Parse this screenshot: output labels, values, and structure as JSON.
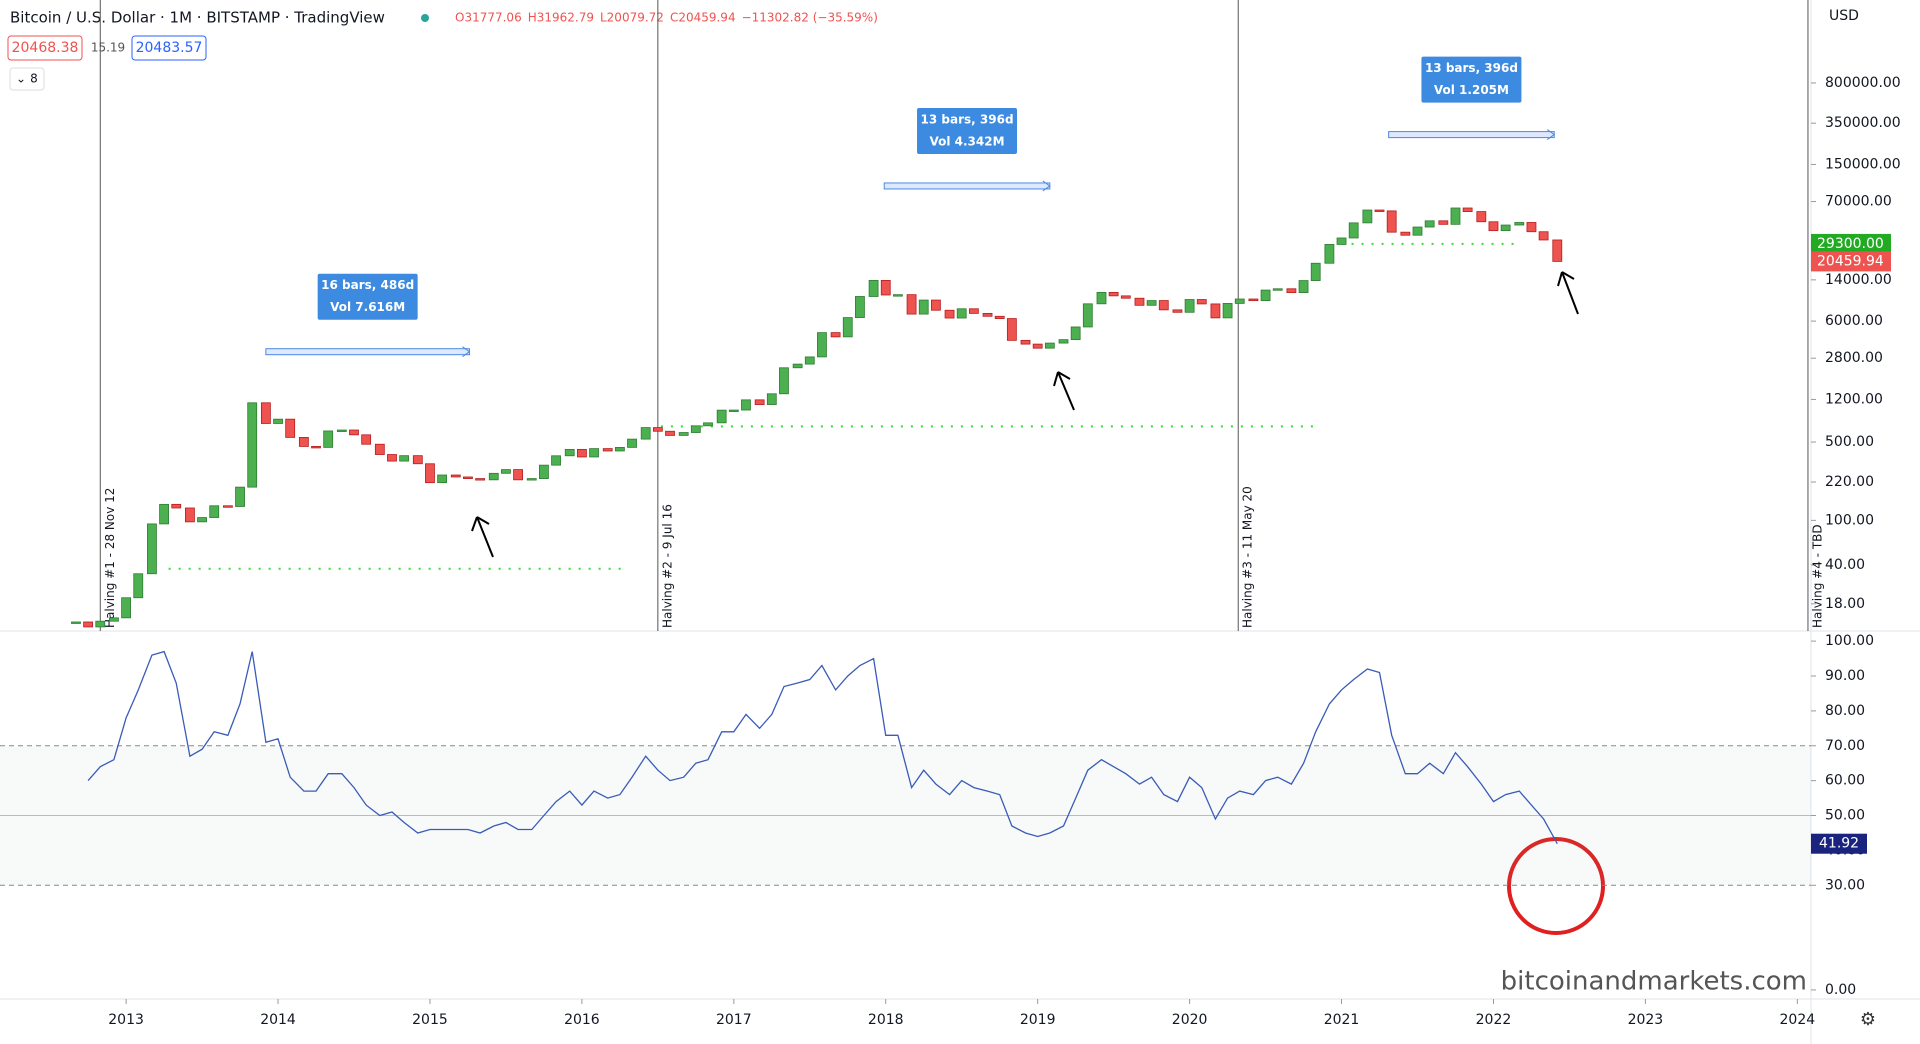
{
  "header": {
    "symbol": "Bitcoin / U.S. Dollar · 1M · BITSTAMP · TradingView",
    "ohlc": [
      "O31777.06",
      "H31962.79",
      "L20079.72",
      "C20459.94",
      "−11302.82 (−35.59%)"
    ],
    "bid": "20468.38",
    "spread": "15.19",
    "ask": "20483.57",
    "indicator_count": "8",
    "currency": "USD"
  },
  "watermark": "bitcoinandmarkets.com",
  "chart_data": [
    {
      "type": "candlestick",
      "log_scale": true,
      "up_color": "#4caf50",
      "down_color": "#ef5350",
      "ylim": [
        10.3,
        4400000
      ],
      "yticks": [
        {
          "value": 18,
          "label": "18.00"
        },
        {
          "value": 40,
          "label": "40.00"
        },
        {
          "value": 100,
          "label": "100.00"
        },
        {
          "value": 220,
          "label": "220.00"
        },
        {
          "value": 500,
          "label": "500.00"
        },
        {
          "value": 1200,
          "label": "1200.00"
        },
        {
          "value": 2800,
          "label": "2800.00"
        },
        {
          "value": 6000,
          "label": "6000.00"
        },
        {
          "value": 14000,
          "label": "14000.00"
        },
        {
          "value": 70000,
          "label": "70000.00"
        },
        {
          "value": 150000,
          "label": "150000.00"
        },
        {
          "value": 350000,
          "label": "350000.00"
        },
        {
          "value": 800000,
          "label": "800000.00"
        }
      ],
      "xlim": [
        2012.17,
        2024.09
      ],
      "xticks": [
        2013,
        2014,
        2015,
        2016,
        2017,
        2018,
        2019,
        2020,
        2021,
        2022,
        2023,
        2024
      ],
      "x": [
        2012.67,
        2012.75,
        2012.83,
        2012.92,
        2013.0,
        2013.08,
        2013.17,
        2013.25,
        2013.33,
        2013.42,
        2013.5,
        2013.58,
        2013.67,
        2013.75,
        2013.83,
        2013.92,
        2014.0,
        2014.08,
        2014.17,
        2014.25,
        2014.33,
        2014.42,
        2014.5,
        2014.58,
        2014.67,
        2014.75,
        2014.83,
        2014.92,
        2015.0,
        2015.08,
        2015.17,
        2015.25,
        2015.33,
        2015.42,
        2015.5,
        2015.58,
        2015.67,
        2015.75,
        2015.83,
        2015.92,
        2016.0,
        2016.08,
        2016.17,
        2016.25,
        2016.33,
        2016.42,
        2016.5,
        2016.58,
        2016.67,
        2016.75,
        2016.83,
        2016.92,
        2017.0,
        2017.08,
        2017.17,
        2017.25,
        2017.33,
        2017.42,
        2017.5,
        2017.58,
        2017.67,
        2017.75,
        2017.83,
        2017.92,
        2018.0,
        2018.08,
        2018.17,
        2018.25,
        2018.33,
        2018.42,
        2018.5,
        2018.58,
        2018.67,
        2018.75,
        2018.83,
        2018.92,
        2019.0,
        2019.08,
        2019.17,
        2019.25,
        2019.33,
        2019.42,
        2019.5,
        2019.58,
        2019.67,
        2019.75,
        2019.83,
        2019.92,
        2020.0,
        2020.08,
        2020.17,
        2020.25,
        2020.33,
        2020.42,
        2020.5,
        2020.58,
        2020.67,
        2020.75,
        2020.83,
        2020.92,
        2021.0,
        2021.08,
        2021.17,
        2021.25,
        2021.33,
        2021.42,
        2021.5,
        2021.58,
        2021.67,
        2021.75,
        2021.83,
        2021.92,
        2022.0,
        2022.08,
        2022.17,
        2022.25,
        2022.33,
        2022.42
      ],
      "series": [
        {
          "values": [
            12.4,
            11.2,
            12.6,
            13.5,
            20.4,
            33.4,
            93,
            139,
            129,
            97,
            106,
            135,
            133,
            198,
            1120,
            732,
            800,
            550,
            457,
            448,
            628,
            640,
            580,
            478,
            387,
            338,
            378,
            320,
            217,
            254,
            244,
            236,
            230,
            263,
            284,
            230,
            236,
            311,
            377,
            430,
            368,
            437,
            416,
            448,
            531,
            673,
            624,
            573,
            608,
            698,
            742,
            963,
            965,
            1190,
            1080,
            1348,
            2300,
            2480,
            2875,
            4735,
            4340,
            6450,
            9950,
            13850,
            10260,
            10330,
            6930,
            9245,
            7500,
            6390,
            7730,
            7030,
            6625,
            6320,
            4040,
            3740,
            3440,
            3820,
            4100,
            5320,
            8560,
            10820,
            10080,
            9600,
            8300,
            9150,
            7560,
            7190,
            9350,
            8540,
            6410,
            8630,
            9450,
            9140,
            11350,
            11660,
            10780,
            13800,
            19700,
            28990,
            33110,
            45160,
            58800,
            57750,
            37300,
            35040,
            41460,
            47100,
            43820,
            61300,
            56950,
            46200,
            38480,
            43190,
            45530,
            37640,
            31780,
            20459.94
          ]
        }
      ],
      "price_tags": [
        {
          "value": 29300,
          "label": "29300.00",
          "color": "#22ab22"
        },
        {
          "value": 20459.94,
          "label": "20459.94",
          "color": "#ef5350"
        }
      ],
      "levels": [
        {
          "value": 37,
          "x": [
            2013.28,
            2016.28
          ]
        },
        {
          "value": 690,
          "x": [
            2016.52,
            2020.86
          ]
        },
        {
          "value": 29300,
          "x": [
            2021.0,
            2022.15
          ]
        }
      ],
      "halvings": [
        {
          "label": "Halving #1 - 28 Nov 12",
          "x": 2012.83
        },
        {
          "label": "Halving #2 - 9 Jul 16",
          "x": 2016.5
        },
        {
          "label": "Halving #3 - 11 May 20",
          "x": 2020.32
        },
        {
          "label": "Halving #4 - TBD",
          "x": 2024.07
        }
      ],
      "measures": [
        {
          "text": [
            "16 bars, 486d",
            "Vol 7.616M"
          ],
          "x": [
            2013.92,
            2015.26
          ],
          "value": 3200
        },
        {
          "text": [
            "13 bars, 396d",
            "Vol 4.342M"
          ],
          "x": [
            2017.99,
            2019.08
          ],
          "value": 96400
        },
        {
          "text": [
            "13 bars, 396d",
            "Vol 1.205M"
          ],
          "x": [
            2021.31,
            2022.4
          ],
          "value": 277000
        }
      ]
    },
    {
      "type": "line",
      "color": "#3a5bb8",
      "ylim": [
        -2.6,
        102.9
      ],
      "yticks": [
        {
          "value": 0,
          "label": "0.00"
        },
        {
          "value": 30,
          "label": "30.00"
        },
        {
          "value": 40,
          "label": "40.00"
        },
        {
          "value": 50,
          "label": "50.00"
        },
        {
          "value": 60,
          "label": "60.00"
        },
        {
          "value": 70,
          "label": "70.00"
        },
        {
          "value": 80,
          "label": "80.00"
        },
        {
          "value": 90,
          "label": "90.00"
        },
        {
          "value": 100,
          "label": "100.00"
        }
      ],
      "band": [
        30,
        70
      ],
      "midline": 50,
      "last_label": "41.92",
      "values": [
        null,
        60,
        64,
        66,
        78,
        86,
        96,
        97,
        88,
        67,
        69,
        74,
        73,
        82,
        97,
        71,
        72,
        61,
        57,
        57,
        62,
        62,
        58,
        53,
        50,
        51,
        48,
        45,
        46,
        46,
        46,
        46,
        45,
        47,
        48,
        46,
        46,
        50,
        54,
        57,
        53,
        57,
        55,
        56,
        61,
        67,
        63,
        60,
        61,
        65,
        66,
        74,
        74,
        79,
        75,
        79,
        87,
        88,
        89,
        93,
        86,
        90,
        93,
        95,
        73,
        73,
        58,
        63,
        59,
        56,
        60,
        58,
        57,
        56,
        47,
        45,
        44,
        45,
        47,
        55,
        63,
        66,
        64,
        62,
        59,
        61,
        56,
        54,
        61,
        58,
        49,
        55,
        57,
        56,
        60,
        61,
        59,
        65,
        74,
        82,
        86,
        89,
        92,
        91,
        73,
        62,
        62,
        65,
        62,
        68,
        64,
        59,
        54,
        56,
        57,
        53,
        49,
        41.92
      ]
    }
  ]
}
